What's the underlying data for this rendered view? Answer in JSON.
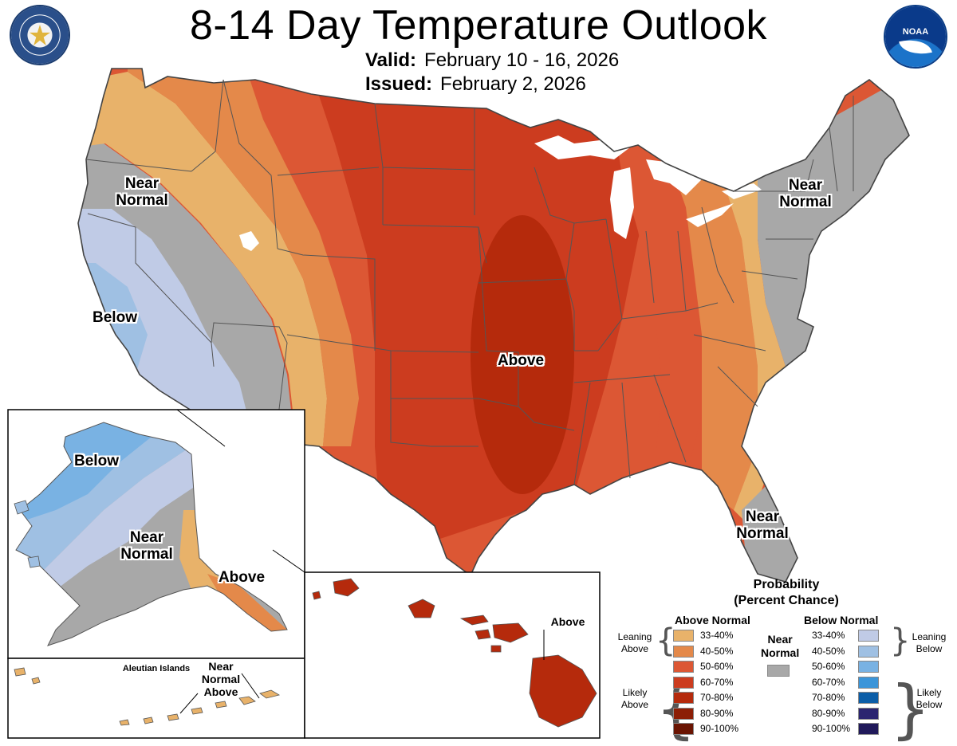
{
  "header": {
    "title": "8-14 Day Temperature Outlook",
    "valid_label": "Valid:",
    "valid_value": "February 10 - 16, 2026",
    "issued_label": "Issued:",
    "issued_value": "February 2, 2026"
  },
  "logos": {
    "left": "department-of-commerce-seal-icon",
    "right": "noaa-logo-icon"
  },
  "map_labels": {
    "west_near_normal": "Near\nNormal",
    "west_below": "Below",
    "central_above": "Above",
    "northeast_near_normal": "Near\nNormal",
    "florida_near_normal": "Near\nNormal",
    "alaska_below": "Below",
    "alaska_near_normal": "Near\nNormal",
    "alaska_above": "Above",
    "aleutian_islands": "Aleutian Islands",
    "aleutian_near_normal_above": "Near\nNormal\nAbove",
    "hawaii_above": "Above"
  },
  "colors": {
    "above_33_40": "#e8b26a",
    "above_40_50": "#e4894a",
    "above_50_60": "#dc5734",
    "above_60_70": "#cc3c1f",
    "above_70_80": "#b52a0c",
    "above_80_90": "#8c1e06",
    "above_90_100": "#6a1402",
    "near_normal": "#a8a8a8",
    "below_33_40": "#c0cbe6",
    "below_40_50": "#9fc0e3",
    "below_50_60": "#79b2e3",
    "below_60_70": "#3b95d9",
    "below_70_80": "#0b5ea8",
    "below_80_90": "#2b2570",
    "below_90_100": "#20195a"
  },
  "legend": {
    "title": "Probability\n(Percent Chance)",
    "above_header": "Above Normal",
    "below_header": "Below Normal",
    "near_header": "Near\nNormal",
    "leaning_above": "Leaning\nAbove",
    "likely_above": "Likely\nAbove",
    "leaning_below": "Leaning\nBelow",
    "likely_below": "Likely\nBelow",
    "above_items": [
      "33-40%",
      "40-50%",
      "50-60%",
      "60-70%",
      "70-80%",
      "80-90%",
      "90-100%"
    ],
    "below_items": [
      "33-40%",
      "40-50%",
      "50-60%",
      "60-70%",
      "70-80%",
      "80-90%",
      "90-100%"
    ]
  }
}
